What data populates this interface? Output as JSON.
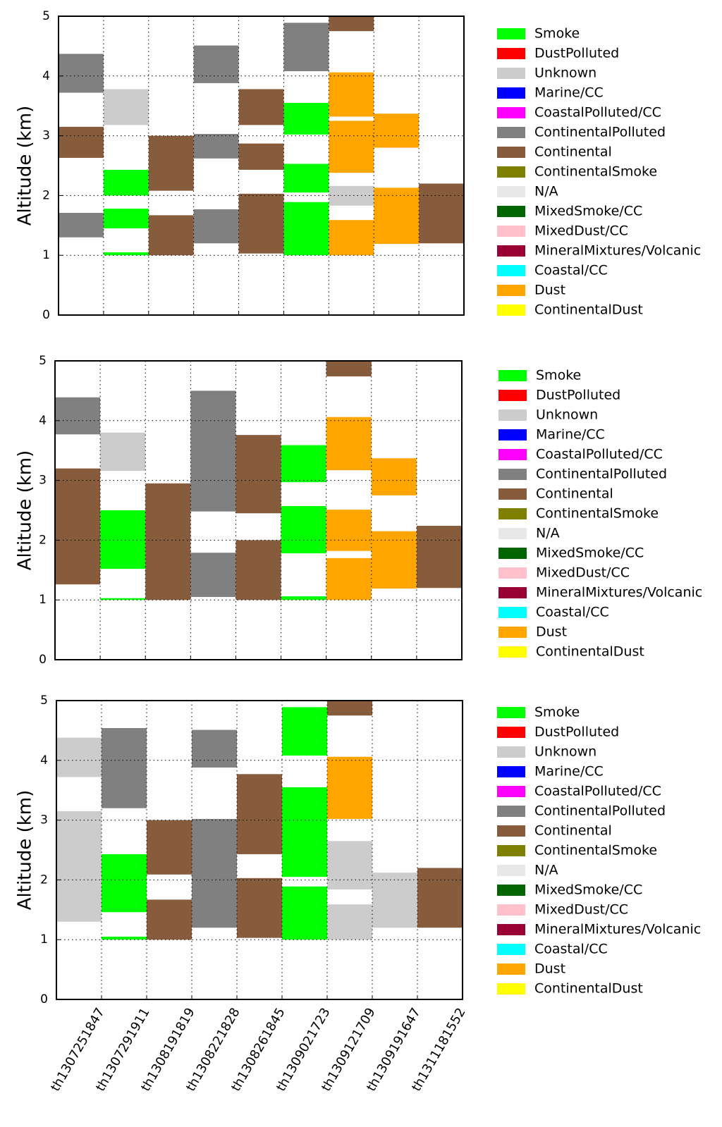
{
  "chart_data": [
    {
      "type": "range-bar",
      "y_label": "Altitude (km)",
      "ylim": [
        0,
        5
      ],
      "yticks": [
        0,
        1,
        2,
        3,
        4,
        5
      ],
      "grid": true,
      "legend": "right",
      "series": [
        {
          "name": "Smoke",
          "color": "#00ff00",
          "values": [
            [],
            [
              [
                2.0,
                2.43
              ],
              [
                1.45,
                1.78
              ],
              [
                1.0,
                1.05
              ]
            ],
            [],
            [],
            [],
            [
              [
                3.02,
                3.55
              ],
              [
                2.05,
                2.53
              ],
              [
                1.0,
                1.89
              ]
            ],
            [],
            [],
            []
          ]
        },
        {
          "name": "DustPolluted",
          "color": "#ff0000",
          "values": [
            [],
            [],
            [],
            [],
            [],
            [],
            [],
            [],
            []
          ]
        },
        {
          "name": "Unknown",
          "color": "#cccccc",
          "values": [
            [],
            [
              [
                3.18,
                3.78
              ]
            ],
            [],
            [],
            [],
            [],
            [
              [
                1.83,
                2.16
              ]
            ],
            [],
            []
          ]
        },
        {
          "name": "Marine/CC",
          "color": "#0000ff",
          "values": [
            [],
            [],
            [],
            [],
            [],
            [],
            [],
            [],
            []
          ]
        },
        {
          "name": "CoastalPolluted/CC",
          "color": "#ff00ff",
          "values": [
            [],
            [],
            [],
            [],
            [],
            [],
            [],
            [],
            []
          ]
        },
        {
          "name": "ContinentalPolluted",
          "color": "#808080",
          "values": [
            [
              [
                3.72,
                4.37
              ],
              [
                1.3,
                1.71
              ]
            ],
            [],
            [],
            [
              [
                3.88,
                4.51
              ],
              [
                2.62,
                3.03
              ],
              [
                1.2,
                1.77
              ]
            ],
            [],
            [
              [
                4.08,
                4.89
              ]
            ],
            [],
            [],
            []
          ]
        },
        {
          "name": "Continental",
          "color": "#875c3c",
          "values": [
            [
              [
                2.63,
                3.15
              ]
            ],
            [],
            [
              [
                2.08,
                3.0
              ],
              [
                1.0,
                1.67
              ]
            ],
            [],
            [
              [
                3.18,
                3.78
              ],
              [
                2.43,
                2.87
              ],
              [
                1.03,
                2.03
              ]
            ],
            [],
            [
              [
                4.75,
                5.0
              ]
            ],
            [],
            [
              [
                1.2,
                2.2
              ]
            ]
          ]
        },
        {
          "name": "ContinentalSmoke",
          "color": "#808000",
          "values": [
            [],
            [],
            [],
            [],
            [],
            [],
            [],
            [],
            []
          ]
        },
        {
          "name": "N/A",
          "color": "#e8e8e8",
          "values": [
            [],
            [],
            [],
            [],
            [],
            [],
            [],
            [],
            []
          ]
        },
        {
          "name": "MixedSmoke/CC",
          "color": "#006400",
          "values": [
            [],
            [],
            [],
            [],
            [],
            [],
            [],
            [],
            []
          ]
        },
        {
          "name": "MixedDust/CC",
          "color": "#ffc0cb",
          "values": [
            [],
            [],
            [],
            [],
            [],
            [],
            [],
            [],
            []
          ]
        },
        {
          "name": "MineralMixtures/Volcanic",
          "color": "#990033",
          "values": [
            [],
            [],
            [],
            [],
            [],
            [],
            [],
            [],
            []
          ]
        },
        {
          "name": "Coastal/CC",
          "color": "#00ffff",
          "values": [
            [],
            [],
            [],
            [],
            [],
            [],
            [],
            [],
            []
          ]
        },
        {
          "name": "Dust",
          "color": "#ffa500",
          "values": [
            [],
            [],
            [],
            [],
            [],
            [],
            [
              [
                3.32,
                4.06
              ],
              [
                2.38,
                3.25
              ],
              [
                1.0,
                1.59
              ]
            ],
            [
              [
                2.8,
                3.37
              ],
              [
                1.19,
                2.13
              ]
            ],
            []
          ]
        },
        {
          "name": "ContinentalDust",
          "color": "#ffff00",
          "values": [
            [],
            [],
            [],
            [],
            [],
            [],
            [],
            [],
            []
          ]
        }
      ]
    },
    {
      "type": "range-bar",
      "y_label": "Altitude (km)",
      "ylim": [
        0,
        5
      ],
      "yticks": [
        0,
        1,
        2,
        3,
        4,
        5
      ],
      "grid": true,
      "legend": "right",
      "series": [
        {
          "name": "Smoke",
          "color": "#00ff00",
          "values": [
            [],
            [
              [
                1.52,
                2.5
              ],
              [
                1.0,
                1.03
              ]
            ],
            [],
            [],
            [],
            [
              [
                2.97,
                3.59
              ],
              [
                1.78,
                2.57
              ],
              [
                1.0,
                1.06
              ]
            ],
            [],
            [],
            []
          ]
        },
        {
          "name": "DustPolluted",
          "color": "#ff0000",
          "values": [
            [],
            [],
            [],
            [],
            [],
            [],
            [],
            [],
            []
          ]
        },
        {
          "name": "Unknown",
          "color": "#cccccc",
          "values": [
            [],
            [
              [
                3.16,
                3.8
              ]
            ],
            [],
            [],
            [],
            [],
            [],
            [],
            []
          ]
        },
        {
          "name": "Marine/CC",
          "color": "#0000ff",
          "values": [
            [],
            [],
            [],
            [],
            [],
            [],
            [],
            [],
            []
          ]
        },
        {
          "name": "CoastalPolluted/CC",
          "color": "#ff00ff",
          "values": [
            [],
            [],
            [],
            [],
            [],
            [],
            [],
            [],
            []
          ]
        },
        {
          "name": "ContinentalPolluted",
          "color": "#808080",
          "values": [
            [
              [
                3.77,
                4.39
              ]
            ],
            [],
            [],
            [
              [
                2.48,
                4.5
              ],
              [
                1.05,
                1.79
              ]
            ],
            [],
            [],
            [],
            [],
            []
          ]
        },
        {
          "name": "Continental",
          "color": "#875c3c",
          "values": [
            [
              [
                1.26,
                3.2
              ]
            ],
            [],
            [
              [
                1.0,
                2.95
              ]
            ],
            [],
            [
              [
                2.45,
                3.76
              ],
              [
                1.0,
                2.0
              ]
            ],
            [],
            [
              [
                4.74,
                5.0
              ]
            ],
            [],
            [
              [
                1.2,
                2.24
              ]
            ]
          ]
        },
        {
          "name": "ContinentalSmoke",
          "color": "#808000",
          "values": [
            [],
            [],
            [],
            [],
            [],
            [],
            [],
            [],
            []
          ]
        },
        {
          "name": "N/A",
          "color": "#e8e8e8",
          "values": [
            [],
            [],
            [],
            [],
            [],
            [],
            [],
            [],
            []
          ]
        },
        {
          "name": "MixedSmoke/CC",
          "color": "#006400",
          "values": [
            [],
            [],
            [],
            [],
            [],
            [],
            [],
            [],
            []
          ]
        },
        {
          "name": "MixedDust/CC",
          "color": "#ffc0cb",
          "values": [
            [],
            [],
            [],
            [],
            [],
            [],
            [],
            [],
            []
          ]
        },
        {
          "name": "MineralMixtures/Volcanic",
          "color": "#990033",
          "values": [
            [],
            [],
            [],
            [],
            [],
            [],
            [],
            [],
            []
          ]
        },
        {
          "name": "Coastal/CC",
          "color": "#00ffff",
          "values": [
            [],
            [],
            [],
            [],
            [],
            [],
            [],
            [],
            []
          ]
        },
        {
          "name": "Dust",
          "color": "#ffa500",
          "values": [
            [],
            [],
            [],
            [],
            [],
            [],
            [
              [
                3.17,
                4.06
              ],
              [
                1.82,
                2.51
              ],
              [
                1.0,
                1.7
              ]
            ],
            [
              [
                2.75,
                3.37
              ],
              [
                1.19,
                2.15
              ]
            ],
            []
          ]
        },
        {
          "name": "ContinentalDust",
          "color": "#ffff00",
          "values": [
            [],
            [],
            [],
            [],
            [],
            [],
            [],
            [],
            []
          ]
        }
      ]
    },
    {
      "type": "range-bar",
      "y_label": "Altitude (km)",
      "ylim": [
        0,
        5
      ],
      "yticks": [
        0,
        1,
        2,
        3,
        4,
        5
      ],
      "grid": true,
      "legend": "right",
      "categories": [
        "th1307251847",
        "th1307291911",
        "th1308191819",
        "th1308221828",
        "th1308261845",
        "th1309021723",
        "th1309121709",
        "th1309191647",
        "th1311181552"
      ],
      "series": [
        {
          "name": "Smoke",
          "color": "#00ff00",
          "values": [
            [],
            [
              [
                1.46,
                2.43
              ],
              [
                1.0,
                1.05
              ]
            ],
            [],
            [],
            [],
            [
              [
                4.08,
                4.89
              ],
              [
                2.05,
                3.55
              ],
              [
                1.0,
                1.89
              ]
            ],
            [],
            [],
            []
          ]
        },
        {
          "name": "DustPolluted",
          "color": "#ff0000",
          "values": [
            [],
            [],
            [],
            [],
            [],
            [],
            [],
            [],
            []
          ]
        },
        {
          "name": "Unknown",
          "color": "#cccccc",
          "values": [
            [
              [
                3.72,
                4.38
              ],
              [
                1.3,
                3.15
              ]
            ],
            [],
            [],
            [],
            [],
            [],
            [
              [
                1.84,
                2.65
              ],
              [
                1.0,
                1.59
              ]
            ],
            [
              [
                1.2,
                2.12
              ]
            ],
            []
          ]
        },
        {
          "name": "Marine/CC",
          "color": "#0000ff",
          "values": [
            [],
            [],
            [],
            [],
            [],
            [],
            [],
            [],
            []
          ]
        },
        {
          "name": "CoastalPolluted/CC",
          "color": "#ff00ff",
          "values": [
            [],
            [],
            [],
            [],
            [],
            [],
            [],
            [],
            []
          ]
        },
        {
          "name": "ContinentalPolluted",
          "color": "#808080",
          "values": [
            [],
            [
              [
                3.2,
                4.54
              ]
            ],
            [],
            [
              [
                3.88,
                4.51
              ],
              [
                1.2,
                3.02
              ]
            ],
            [],
            [],
            [],
            [],
            []
          ]
        },
        {
          "name": "Continental",
          "color": "#875c3c",
          "values": [
            [],
            [],
            [
              [
                2.09,
                3.0
              ],
              [
                1.0,
                1.67
              ]
            ],
            [],
            [
              [
                2.43,
                3.77
              ],
              [
                1.03,
                2.03
              ]
            ],
            [],
            [
              [
                4.75,
                5.0
              ]
            ],
            [],
            [
              [
                1.2,
                2.2
              ]
            ]
          ]
        },
        {
          "name": "ContinentalSmoke",
          "color": "#808000",
          "values": [
            [],
            [],
            [],
            [],
            [],
            [],
            [],
            [],
            []
          ]
        },
        {
          "name": "N/A",
          "color": "#e8e8e8",
          "values": [
            [],
            [],
            [],
            [],
            [],
            [],
            [],
            [],
            []
          ]
        },
        {
          "name": "MixedSmoke/CC",
          "color": "#006400",
          "values": [
            [],
            [],
            [],
            [],
            [],
            [],
            [],
            [],
            []
          ]
        },
        {
          "name": "MixedDust/CC",
          "color": "#ffc0cb",
          "values": [
            [],
            [],
            [],
            [],
            [],
            [],
            [],
            [],
            []
          ]
        },
        {
          "name": "MineralMixtures/Volcanic",
          "color": "#990033",
          "values": [
            [],
            [],
            [],
            [],
            [],
            [],
            [],
            [],
            []
          ]
        },
        {
          "name": "Coastal/CC",
          "color": "#00ffff",
          "values": [
            [],
            [],
            [],
            [],
            [],
            [],
            [],
            [],
            []
          ]
        },
        {
          "name": "Dust",
          "color": "#ffa500",
          "values": [
            [],
            [],
            [],
            [],
            [],
            [],
            [
              [
                3.02,
                4.06
              ]
            ],
            [],
            []
          ]
        },
        {
          "name": "ContinentalDust",
          "color": "#ffff00",
          "values": [
            [],
            [],
            [],
            [],
            [],
            [],
            [],
            [],
            []
          ]
        }
      ]
    }
  ]
}
